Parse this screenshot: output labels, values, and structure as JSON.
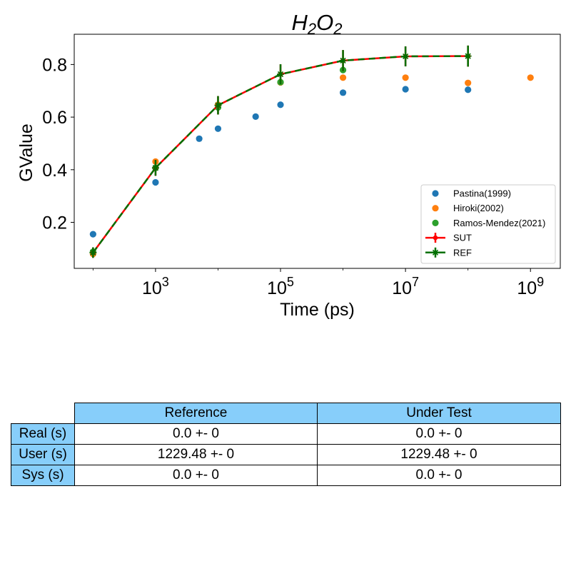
{
  "chart_data": {
    "type": "scatter",
    "title_base": "H",
    "title_sub1": "2",
    "title_mid": "O",
    "title_sub2": "2",
    "xlabel": "Time (ps)",
    "ylabel": "GValue",
    "xscale": "log",
    "xlim": [
      50,
      3000000000
    ],
    "ylim": [
      0.025,
      0.915
    ],
    "x_ticks": [
      {
        "value": 1000,
        "base": "10",
        "exp": "3"
      },
      {
        "value": 100000,
        "base": "10",
        "exp": "5"
      },
      {
        "value": 10000000,
        "base": "10",
        "exp": "7"
      },
      {
        "value": 1000000000,
        "base": "10",
        "exp": "9"
      }
    ],
    "y_ticks": [
      {
        "value": 0.2,
        "label": "0.2"
      },
      {
        "value": 0.4,
        "label": "0.4"
      },
      {
        "value": 0.6,
        "label": "0.6"
      },
      {
        "value": 0.8,
        "label": "0.8"
      }
    ],
    "legend_position": "lower-right",
    "series": [
      {
        "name": "Pastina(1999)",
        "kind": "scatter",
        "color": "#1f77b4",
        "x": [
          100,
          1000,
          5000,
          10000,
          40000,
          100000,
          1000000,
          10000000,
          100000000
        ],
        "y": [
          0.155,
          0.352,
          0.518,
          0.556,
          0.602,
          0.647,
          0.693,
          0.706,
          0.704
        ]
      },
      {
        "name": "Hiroki(2002)",
        "kind": "scatter",
        "color": "#ff7f0e",
        "x": [
          100,
          1000,
          10000,
          100000,
          1000000,
          10000000,
          100000000,
          1000000000
        ],
        "y": [
          0.08,
          0.431,
          0.647,
          0.732,
          0.75,
          0.75,
          0.73,
          0.75
        ]
      },
      {
        "name": "Ramos-Mendez(2021)",
        "kind": "scatter",
        "color": "#2ca02c",
        "x": [
          100,
          1000,
          10000,
          100000,
          1000000
        ],
        "y": [
          0.088,
          0.407,
          0.637,
          0.733,
          0.779
        ]
      },
      {
        "name": "SUT",
        "kind": "line-errorbar",
        "color": "#ff0000",
        "marker": "diamond",
        "x": [
          100,
          1000,
          10000,
          100000,
          1000000,
          10000000,
          100000000
        ],
        "y": [
          0.085,
          0.407,
          0.645,
          0.763,
          0.815,
          0.831,
          0.832
        ],
        "yerr": [
          0.02,
          0.03,
          0.035,
          0.038,
          0.04,
          0.038,
          0.04
        ]
      },
      {
        "name": "REF",
        "kind": "line-errorbar",
        "color": "#007000",
        "marker": "star",
        "x": [
          100,
          1000,
          10000,
          100000,
          1000000,
          10000000,
          100000000
        ],
        "y": [
          0.085,
          0.407,
          0.645,
          0.763,
          0.815,
          0.831,
          0.832
        ],
        "yerr": [
          0.02,
          0.03,
          0.035,
          0.038,
          0.04,
          0.038,
          0.04
        ]
      }
    ]
  },
  "table": {
    "headers": [
      "Reference",
      "Under Test"
    ],
    "rows": [
      {
        "label": "Real (s)",
        "reference": "0.0 +- 0",
        "under_test": "0.0 +- 0"
      },
      {
        "label": "User (s)",
        "reference": "1229.48 +- 0",
        "under_test": "1229.48 +- 0"
      },
      {
        "label": "Sys (s)",
        "reference": "0.0 +- 0",
        "under_test": "0.0 +- 0"
      }
    ],
    "header_color": "#87cefa"
  }
}
